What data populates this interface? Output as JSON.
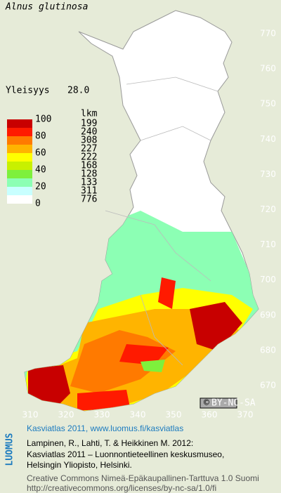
{
  "header": {
    "title": "Alnus glutinosa",
    "frequency_label": "Yleisyys",
    "frequency_value": "28.0"
  },
  "legend": {
    "heading": "lkm",
    "scale_labels": [
      100,
      80,
      60,
      40,
      20,
      0
    ],
    "counts": [
      199,
      240,
      308,
      227,
      222,
      168,
      128,
      133,
      311,
      776
    ],
    "colors": [
      "#c80000",
      "#ff1a00",
      "#ff7a00",
      "#ffb400",
      "#ffff00",
      "#c8f000",
      "#7ef03c",
      "#8cffb4",
      "#c8ffff",
      "#ffffff"
    ]
  },
  "axes": {
    "y_labels": [
      770,
      760,
      750,
      740,
      730,
      720,
      710,
      700,
      690,
      680,
      670
    ],
    "x_labels": [
      310,
      320,
      330,
      340,
      350,
      360,
      370
    ]
  },
  "badge": {
    "text": "BY-NC-SA"
  },
  "footer": {
    "brand": "LUOMUS",
    "link": "Kasviatlas 2011, www.luomus.fi/kasviatlas",
    "citation": [
      "Lampinen, R., Lahti, T. & Heikkinen M. 2012:",
      "Kasviatlas 2011 – Luonnontieteellinen keskusmuseo,",
      "Helsingin Yliopisto, Helsinki."
    ],
    "license": [
      "Creative Commons Nimeä-Epäkaupallinen-Tarttuva 1.0 Suomi",
      "http://creativecommons.org/licenses/by-nc-sa/1.0/fi"
    ]
  }
}
